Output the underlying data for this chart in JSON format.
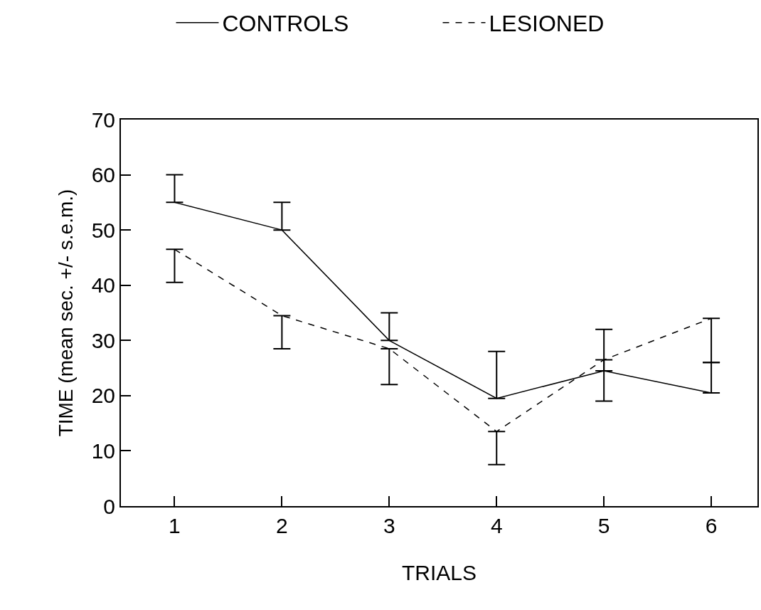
{
  "chart_data": {
    "type": "line",
    "xlabel": "TRIALS",
    "ylabel": "TIME (mean sec. +/- s.e.m.)",
    "x": [
      1,
      2,
      3,
      4,
      5,
      6
    ],
    "series": [
      {
        "name": "CONTROLS",
        "color": "#000000",
        "line_style": "solid",
        "values": [
          55,
          50,
          30,
          19.5,
          24.5,
          20.5
        ],
        "errors": [
          [
            55,
            60
          ],
          [
            50,
            55
          ],
          [
            30,
            35
          ],
          [
            19.5,
            28
          ],
          [
            24.5,
            32
          ],
          [
            20.5,
            26
          ]
        ]
      },
      {
        "name": "LESIONED",
        "color": "#000000",
        "line_style": "dashed",
        "values": [
          46.5,
          34.5,
          28.5,
          13.5,
          26.5,
          34
        ],
        "errors": [
          [
            40.5,
            46.5
          ],
          [
            28.5,
            34.5
          ],
          [
            22,
            28.5
          ],
          [
            7.5,
            13.5
          ],
          [
            19,
            26.5
          ],
          [
            26,
            34
          ]
        ]
      }
    ],
    "xlim": [
      0.5,
      6.43
    ],
    "xticks": [
      1,
      2,
      3,
      4,
      5,
      6
    ],
    "ylim": [
      0,
      70
    ],
    "yticks": [
      0,
      10,
      20,
      30,
      40,
      50,
      60,
      70
    ],
    "grid": false,
    "legend": "top",
    "marker": "none"
  }
}
